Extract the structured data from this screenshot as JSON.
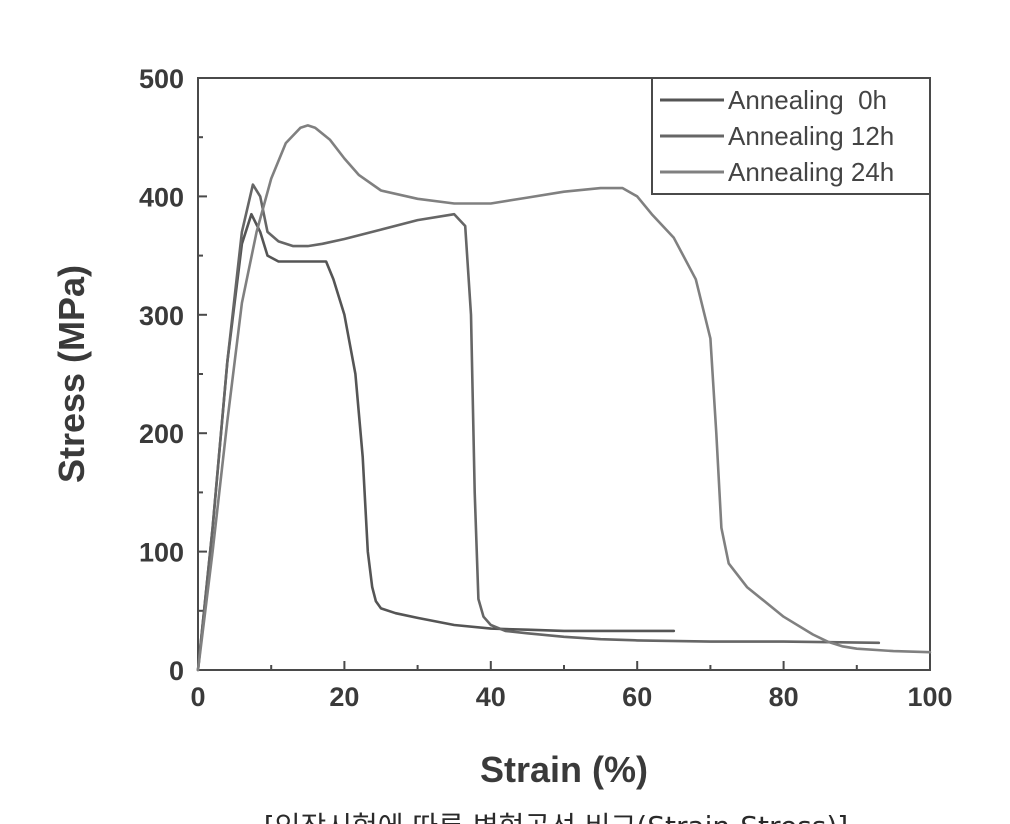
{
  "chart_data": {
    "type": "line",
    "xlabel": "Strain (%)",
    "ylabel": "Stress (MPa)",
    "xlim": [
      0,
      100
    ],
    "ylim": [
      0,
      500
    ],
    "xticks": [
      "0",
      "20",
      "40",
      "60",
      "80",
      "100"
    ],
    "yticks": [
      "0",
      "100",
      "200",
      "300",
      "400",
      "500"
    ],
    "legend_position": "top-right",
    "grid": false,
    "series": [
      {
        "name": "Annealing  0h",
        "color": "#555555",
        "x": [
          0,
          2,
          4,
          6,
          7.3,
          8.5,
          9.5,
          11,
          13,
          15,
          17.5,
          18.5,
          20,
          21.5,
          22.5,
          23.2,
          23.8,
          24.3,
          25,
          27,
          30,
          35,
          40,
          45,
          50,
          55,
          60,
          65
        ],
        "y": [
          0,
          120,
          260,
          360,
          385,
          370,
          350,
          345,
          345,
          345,
          345,
          330,
          300,
          250,
          180,
          100,
          70,
          58,
          52,
          48,
          44,
          38,
          35,
          34,
          33,
          33,
          33,
          33
        ]
      },
      {
        "name": "Annealing 12h",
        "color": "#666666",
        "x": [
          0,
          2,
          4,
          6,
          7.5,
          8.5,
          9.5,
          11,
          13,
          15,
          17,
          20,
          25,
          30,
          35,
          36.5,
          37.3,
          37.8,
          38.3,
          39,
          40,
          42,
          45,
          50,
          55,
          60,
          70,
          80,
          93
        ],
        "y": [
          0,
          120,
          260,
          370,
          410,
          400,
          370,
          362,
          358,
          358,
          360,
          364,
          372,
          380,
          385,
          375,
          300,
          150,
          60,
          45,
          38,
          33,
          31,
          28,
          26,
          25,
          24,
          24,
          23
        ]
      },
      {
        "name": "Annealing 24h",
        "color": "#808080",
        "x": [
          0,
          2,
          4,
          6,
          8,
          10,
          12,
          14,
          15,
          16,
          18,
          20,
          22,
          25,
          30,
          35,
          40,
          45,
          50,
          55,
          58,
          60,
          62,
          65,
          68,
          70,
          70.8,
          71.5,
          72.5,
          75,
          80,
          84,
          86,
          88,
          90,
          95,
          100
        ],
        "y": [
          0,
          100,
          210,
          310,
          370,
          415,
          445,
          458,
          460,
          458,
          448,
          432,
          418,
          405,
          398,
          394,
          394,
          399,
          404,
          407,
          407,
          400,
          385,
          365,
          330,
          280,
          200,
          120,
          90,
          70,
          45,
          30,
          24,
          20,
          18,
          16,
          15
        ]
      }
    ]
  },
  "caption": "[인장시험에 따른 변형곡선 비교(Strain-Stress)]"
}
